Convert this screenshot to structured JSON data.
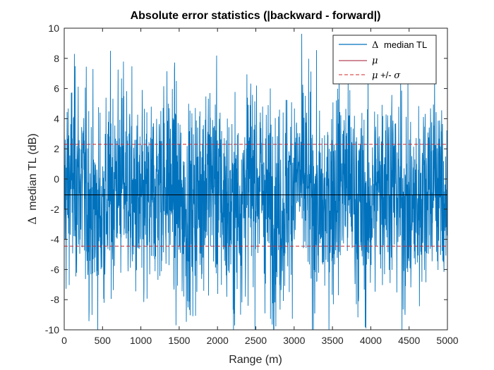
{
  "chart_data": {
    "type": "line",
    "title": "Absolute error statistics (|backward - forward|)",
    "xlabel": "Range (m)",
    "ylabel_symbol": "Δ",
    "ylabel": "median TL (dB)",
    "xlim": [
      0,
      5000
    ],
    "ylim": [
      -10,
      10
    ],
    "xticks": [
      0,
      500,
      1000,
      1500,
      2000,
      2500,
      3000,
      3500,
      4000,
      4500,
      5000
    ],
    "yticks": [
      -10,
      -8,
      -6,
      -4,
      -2,
      0,
      2,
      4,
      6,
      8,
      10
    ],
    "grid": false,
    "legend_position": "top-right",
    "noise_series": {
      "name_symbol": "Δ",
      "name": "median TL",
      "color": "#0072BD",
      "x_start": 0,
      "x_end": 5000,
      "num_points": 2000,
      "range_min": -10,
      "range_max": 10
    },
    "mean": {
      "name": "μ",
      "value": -1.05,
      "color": "#A2142F",
      "drawn_color": "#000000"
    },
    "sigma_band": {
      "name_symbol_mu": "μ",
      "name_mid": " +/- ",
      "name_symbol_sigma": "σ",
      "upper": 2.3,
      "lower": -4.45,
      "color": "#D62728"
    }
  }
}
